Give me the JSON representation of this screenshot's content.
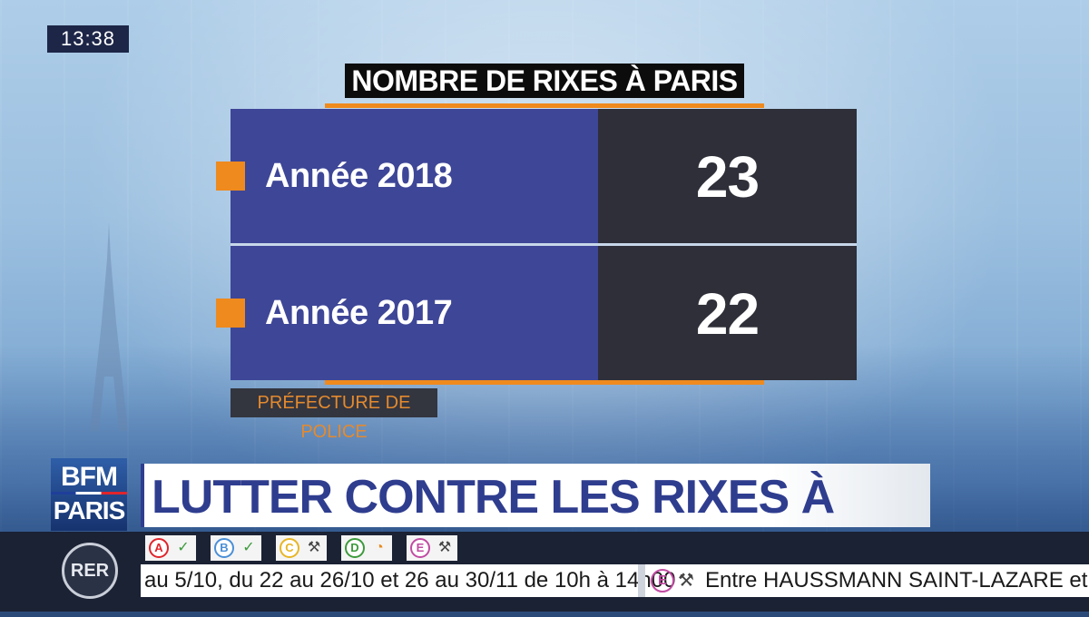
{
  "clock": "13:38",
  "chart_data": {
    "type": "table",
    "title": "NOMBRE DE RIXES À PARIS",
    "categories": [
      "Année 2018",
      "Année 2017"
    ],
    "values": [
      23,
      22
    ],
    "source": "PRÉFECTURE DE POLICE"
  },
  "channel": {
    "logo_line1": "BFM",
    "logo_line2": "PARIS"
  },
  "headline": "LUTTER CONTRE LES RIXES À PARIS",
  "transit": {
    "rer_label": "RER",
    "lines": [
      {
        "letter": "A",
        "color": "#e0242b",
        "status_icon": "check-icon",
        "status_glyph": "✓"
      },
      {
        "letter": "B",
        "color": "#4a8fd6",
        "status_icon": "check-icon",
        "status_glyph": "✓"
      },
      {
        "letter": "C",
        "color": "#e7b623",
        "status_icon": "works-icon",
        "status_glyph": "⚒"
      },
      {
        "letter": "D",
        "color": "#3c9a3c",
        "status_icon": "clock-icon",
        "status_glyph": "◔"
      },
      {
        "letter": "E",
        "color": "#c14ba3",
        "status_icon": "works-icon",
        "status_glyph": "⚒"
      }
    ],
    "ticker_text_1": "au 5/10, du 22 au 26/10 et 26 au 30/11 de 10h à 14h00",
    "ticker_badge": "E",
    "ticker_text_2": "Entre HAUSSMANN SAINT-LAZARE et MA"
  }
}
